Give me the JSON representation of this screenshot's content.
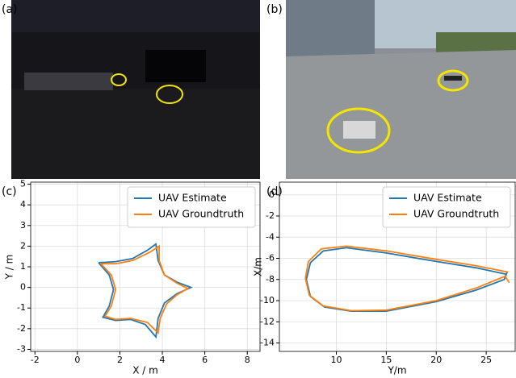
{
  "panel_labels": [
    "(a)",
    "(b)",
    "(c)",
    "(d)"
  ],
  "chart_data": [
    {
      "type": "line",
      "xlabel": "X / m",
      "ylabel": "Y / m",
      "grid": true,
      "legend": "upper right",
      "xlim": [
        -2.2,
        8.6
      ],
      "ylim": [
        -3.1,
        5.1
      ],
      "xticks": [
        -2,
        0,
        2,
        4,
        6,
        8
      ],
      "yticks": [
        -3,
        -2,
        -1,
        0,
        1,
        2,
        3,
        4,
        5
      ],
      "series": [
        {
          "name": "UAV Estimate",
          "color": "#1f77b4",
          "x": [
            1.0,
            1.8,
            2.6,
            3.3,
            3.7,
            3.8,
            4.1,
            4.7,
            5.35,
            4.7,
            4.1,
            3.8,
            3.7,
            3.2,
            2.5,
            1.8,
            1.2,
            1.5,
            1.7,
            1.5,
            1.0
          ],
          "values": [
            1.2,
            1.25,
            1.4,
            1.8,
            2.1,
            1.3,
            0.6,
            0.25,
            0.0,
            -0.3,
            -0.75,
            -1.5,
            -2.4,
            -1.8,
            -1.55,
            -1.6,
            -1.45,
            -0.9,
            -0.1,
            0.6,
            1.2
          ]
        },
        {
          "name": "UAV Groundtruth",
          "color": "#ff7f0e",
          "x": [
            1.1,
            1.8,
            2.6,
            3.4,
            3.85,
            3.85,
            4.1,
            4.7,
            5.2,
            4.7,
            4.2,
            3.9,
            3.8,
            3.3,
            2.5,
            1.8,
            1.3,
            1.6,
            1.8,
            1.6,
            1.1
          ],
          "values": [
            1.15,
            1.15,
            1.3,
            1.7,
            2.0,
            1.3,
            0.6,
            0.2,
            -0.05,
            -0.35,
            -0.8,
            -1.5,
            -2.2,
            -1.7,
            -1.5,
            -1.55,
            -1.4,
            -0.9,
            -0.1,
            0.6,
            1.15
          ]
        }
      ]
    },
    {
      "type": "line",
      "xlabel": "Y/m",
      "ylabel": "X/m",
      "grid": true,
      "legend": "upper right",
      "xlim": [
        4.3,
        27.9
      ],
      "ylim": [
        -14.8,
        1.2
      ],
      "xticks": [
        10,
        15,
        20,
        25
      ],
      "yticks": [
        0,
        -2,
        -4,
        -6,
        -8,
        -10,
        -12,
        -14
      ],
      "series": [
        {
          "name": "UAV Estimate",
          "color": "#1f77b4",
          "x": [
            27.0,
            24.0,
            20.0,
            15.0,
            11.0,
            8.7,
            7.4,
            7.0,
            7.4,
            8.8,
            11.5,
            15.0,
            20.0,
            24.0,
            26.8,
            27.1
          ],
          "values": [
            -7.5,
            -6.9,
            -6.3,
            -5.5,
            -5.0,
            -5.3,
            -6.4,
            -8.0,
            -9.6,
            -10.6,
            -11.0,
            -11.0,
            -10.1,
            -9.0,
            -8.0,
            -7.3
          ]
        },
        {
          "name": "UAV Groundtruth",
          "color": "#ff7f0e",
          "x": [
            27.2,
            24.0,
            20.0,
            15.0,
            11.0,
            8.5,
            7.2,
            6.9,
            7.3,
            8.7,
            11.5,
            15.0,
            20.0,
            24.0,
            26.9,
            27.3
          ],
          "values": [
            -7.3,
            -6.7,
            -6.1,
            -5.3,
            -4.85,
            -5.1,
            -6.3,
            -7.9,
            -9.5,
            -10.5,
            -10.95,
            -10.9,
            -10.0,
            -8.8,
            -7.7,
            -8.3
          ]
        }
      ]
    }
  ]
}
